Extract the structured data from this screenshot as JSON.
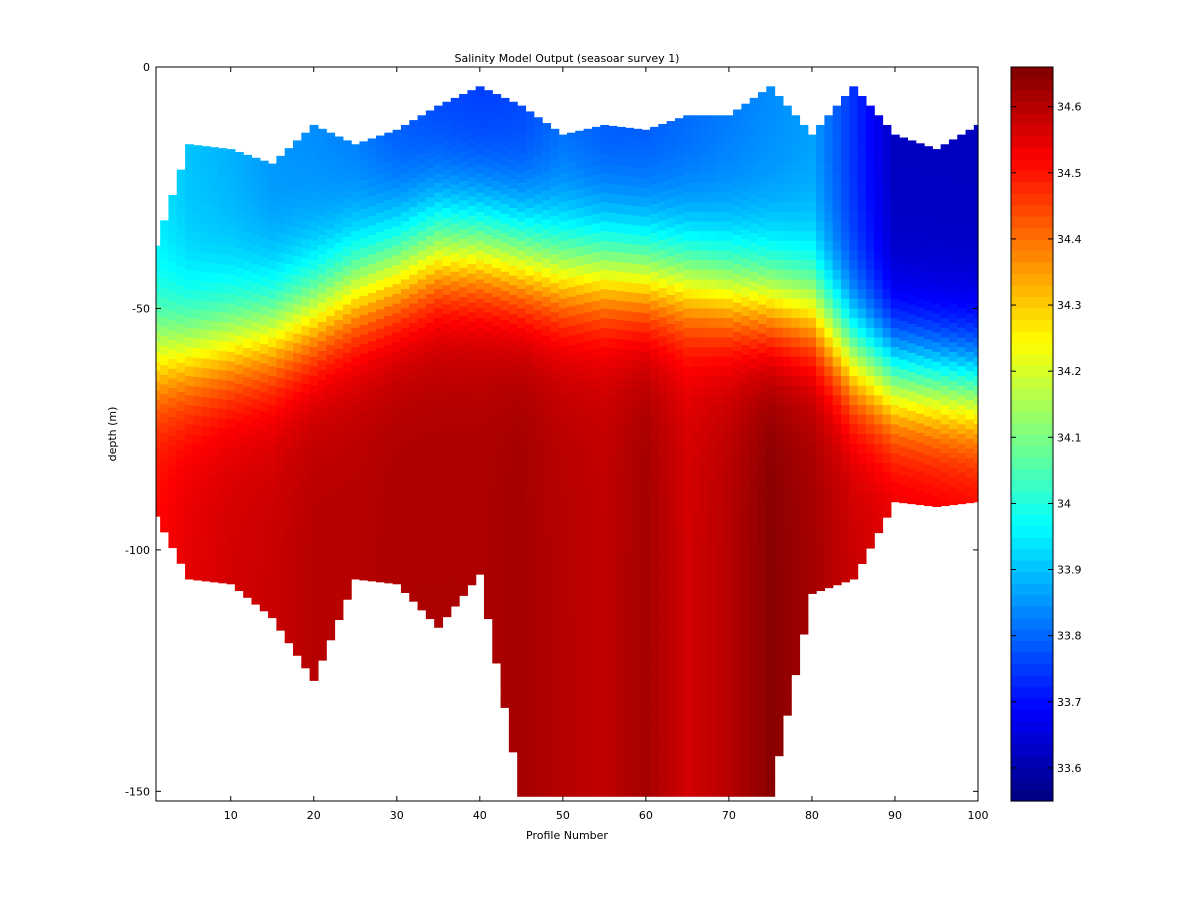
{
  "chart_data": {
    "type": "heatmap",
    "title": "Salinity Model Output  (seasoar survey 1)",
    "xlabel": "Profile Number",
    "ylabel": "depth (m)",
    "xlim": [
      1,
      100
    ],
    "ylim": [
      -152,
      0
    ],
    "xticks": [
      10,
      20,
      30,
      40,
      50,
      60,
      70,
      80,
      90,
      100
    ],
    "yticks": [
      0,
      -50,
      -100,
      -150
    ],
    "colormap": "jet",
    "color_range": [
      33.55,
      34.66
    ],
    "colorbar_ticks": [
      33.6,
      33.7,
      33.8,
      33.9,
      34,
      34.1,
      34.2,
      34.3,
      34.4,
      34.5,
      34.6
    ],
    "grid": false,
    "profiles": {
      "profile_number": [
        1,
        5,
        10,
        15,
        20,
        25,
        30,
        35,
        40,
        45,
        50,
        55,
        60,
        65,
        70,
        75,
        80,
        85,
        90,
        95,
        100
      ],
      "top_depth_m": [
        -37,
        -16,
        -17,
        -20,
        -12,
        -16,
        -13,
        -8,
        -4,
        -8,
        -14,
        -12,
        -13,
        -10,
        -10,
        -4,
        -14,
        -4,
        -14,
        -17,
        -12
      ],
      "bottom_depth_m": [
        -93,
        -106,
        -107,
        -114,
        -127,
        -106,
        -107,
        -116,
        -105,
        -151,
        -151,
        -151,
        -151,
        -151,
        -151,
        -151,
        -109,
        -106,
        -90,
        -91,
        -90
      ],
      "salinity_surface": [
        33.94,
        33.9,
        33.88,
        33.85,
        33.84,
        33.82,
        33.78,
        33.76,
        33.75,
        33.76,
        33.8,
        33.78,
        33.78,
        33.8,
        33.82,
        33.84,
        33.86,
        33.74,
        33.62,
        33.62,
        33.62
      ],
      "halocline_depth_m": [
        -60,
        -59,
        -57,
        -55,
        -51,
        -46,
        -42,
        -38,
        -38,
        -40,
        -42,
        -42,
        -43,
        -44,
        -46,
        -48,
        -50,
        -60,
        -65,
        -66,
        -67
      ],
      "salinity_deep": [
        34.52,
        34.55,
        34.57,
        34.58,
        34.6,
        34.6,
        34.61,
        34.61,
        34.61,
        34.62,
        34.6,
        34.59,
        34.62,
        34.57,
        34.6,
        34.65,
        34.62,
        34.58,
        34.56,
        34.55,
        34.54
      ]
    }
  }
}
